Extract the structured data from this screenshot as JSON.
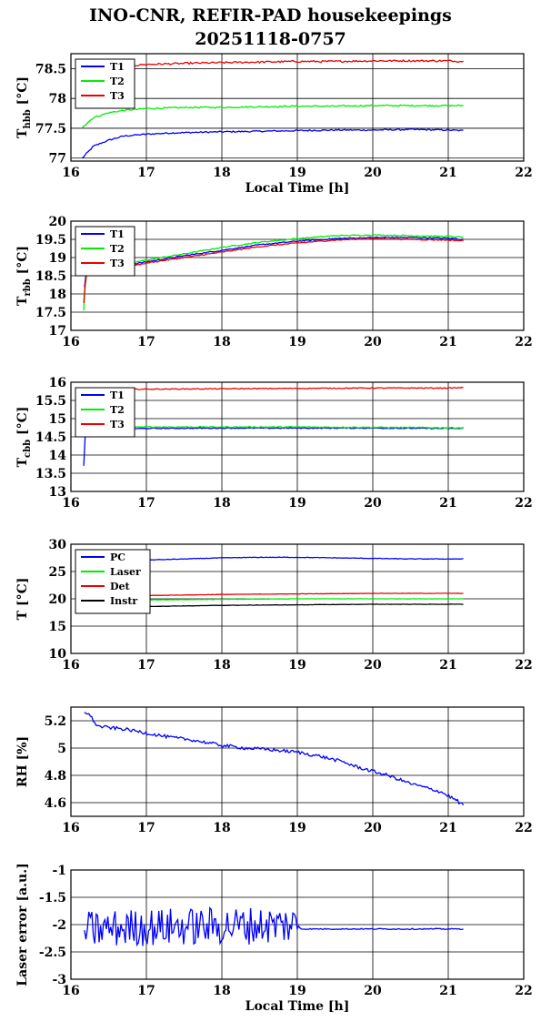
{
  "title_line1": "INO-CNR, REFIR-PAD housekeepings",
  "title_line2": "20251118-0757",
  "chart_data": [
    {
      "type": "line",
      "ylabel_main": "T",
      "ylabel_sub": "hbb",
      "ylabel_unit": "[°C]",
      "xlabel": "Local Time [h]",
      "xlim": [
        16,
        22
      ],
      "ylim": [
        76.95,
        78.75
      ],
      "xticks": [
        16,
        17,
        18,
        19,
        20,
        21,
        22
      ],
      "yticks": [
        77,
        77.5,
        78,
        78.5
      ],
      "grid": true,
      "legend_position": "top-left",
      "series": [
        {
          "name": "T1",
          "color": "#0000ff",
          "x": [
            16.15,
            16.3,
            16.5,
            16.7,
            17.0,
            17.3,
            17.6,
            18.0,
            18.5,
            19.0,
            19.5,
            20.0,
            20.5,
            21.0,
            21.2
          ],
          "y": [
            77.0,
            77.2,
            77.3,
            77.37,
            77.4,
            77.42,
            77.43,
            77.44,
            77.45,
            77.46,
            77.47,
            77.47,
            77.48,
            77.47,
            77.46
          ],
          "noise": 0.012
        },
        {
          "name": "T2",
          "color": "#00ee00",
          "x": [
            16.15,
            16.3,
            16.5,
            16.7,
            17.0,
            17.3,
            17.6,
            18.0,
            18.5,
            19.0,
            19.5,
            20.0,
            20.5,
            21.0,
            21.2
          ],
          "y": [
            77.52,
            77.68,
            77.76,
            77.8,
            77.83,
            77.84,
            77.85,
            77.85,
            77.86,
            77.87,
            77.87,
            77.88,
            77.88,
            77.88,
            77.88
          ],
          "noise": 0.012
        },
        {
          "name": "T3",
          "color": "#ee0000",
          "x": [
            16.15,
            16.3,
            16.5,
            16.8,
            17.0,
            17.3,
            17.6,
            18.0,
            18.5,
            19.0,
            19.5,
            20.0,
            20.5,
            21.0,
            21.2
          ],
          "y": [
            78.45,
            78.5,
            78.53,
            78.55,
            78.57,
            78.58,
            78.59,
            78.6,
            78.61,
            78.62,
            78.62,
            78.63,
            78.63,
            78.63,
            78.62
          ],
          "noise": 0.015
        }
      ]
    },
    {
      "type": "line",
      "ylabel_main": "T",
      "ylabel_sub": "rbb",
      "ylabel_unit": "[°C]",
      "xlabel": "",
      "xlim": [
        16,
        22
      ],
      "ylim": [
        17,
        20
      ],
      "xticks": [
        16,
        17,
        18,
        19,
        20,
        21,
        22
      ],
      "yticks": [
        17,
        17.5,
        18,
        18.5,
        19,
        19.5,
        20
      ],
      "grid": true,
      "legend_position": "top-left",
      "series": [
        {
          "name": "T1",
          "color": "#0000ff",
          "x": [
            16.18,
            16.2,
            16.4,
            16.7,
            17.0,
            17.5,
            18.0,
            18.5,
            19.0,
            19.5,
            20.0,
            20.5,
            21.0,
            21.2
          ],
          "y": [
            18.2,
            18.55,
            18.65,
            18.78,
            18.88,
            19.05,
            19.2,
            19.35,
            19.45,
            19.52,
            19.55,
            19.55,
            19.53,
            19.5
          ],
          "noise": 0.015
        },
        {
          "name": "T2",
          "color": "#00ee00",
          "x": [
            16.17,
            16.19,
            16.2,
            16.4,
            16.7,
            17.0,
            17.5,
            18.0,
            18.5,
            19.0,
            19.5,
            20.0,
            20.5,
            21.0,
            21.2
          ],
          "y": [
            17.55,
            18.2,
            18.55,
            18.7,
            18.82,
            18.93,
            19.1,
            19.28,
            19.42,
            19.52,
            19.6,
            19.62,
            19.6,
            19.58,
            19.56
          ],
          "noise": 0.015
        },
        {
          "name": "T3",
          "color": "#ee0000",
          "x": [
            16.17,
            16.19,
            16.2,
            16.4,
            16.7,
            17.0,
            17.5,
            18.0,
            18.5,
            19.0,
            19.5,
            20.0,
            20.5,
            21.0,
            21.2
          ],
          "y": [
            17.75,
            18.3,
            18.55,
            18.62,
            18.72,
            18.85,
            19.0,
            19.15,
            19.3,
            19.4,
            19.48,
            19.52,
            19.5,
            19.48,
            19.46
          ],
          "noise": 0.015
        }
      ]
    },
    {
      "type": "line",
      "ylabel_main": "T",
      "ylabel_sub": "cbb",
      "ylabel_unit": "[°C]",
      "xlabel": "",
      "xlim": [
        16,
        22
      ],
      "ylim": [
        13,
        16
      ],
      "xticks": [
        16,
        17,
        18,
        19,
        20,
        21,
        22
      ],
      "yticks": [
        13,
        13.5,
        14,
        14.5,
        15,
        15.5,
        16
      ],
      "grid": true,
      "legend_position": "top-left",
      "series": [
        {
          "name": "T1",
          "color": "#0000ff",
          "x": [
            16.17,
            16.18,
            16.2,
            16.5,
            17.0,
            18.0,
            19.0,
            20.0,
            21.0,
            21.2
          ],
          "y": [
            13.7,
            14.4,
            14.7,
            14.72,
            14.73,
            14.74,
            14.74,
            14.74,
            14.73,
            14.73
          ],
          "noise": 0.012
        },
        {
          "name": "T2",
          "color": "#00ee00",
          "x": [
            16.2,
            16.5,
            17.0,
            18.0,
            19.0,
            20.0,
            21.0,
            21.2
          ],
          "y": [
            14.78,
            14.78,
            14.77,
            14.77,
            14.77,
            14.76,
            14.75,
            14.75
          ],
          "noise": 0.015
        },
        {
          "name": "T3",
          "color": "#ee0000",
          "x": [
            16.2,
            16.5,
            17.0,
            18.0,
            19.0,
            20.0,
            21.0,
            21.2
          ],
          "y": [
            15.8,
            15.8,
            15.81,
            15.82,
            15.83,
            15.84,
            15.84,
            15.85
          ],
          "noise": 0.012
        }
      ]
    },
    {
      "type": "line",
      "ylabel_main": "T [°C]",
      "ylabel_sub": "",
      "ylabel_unit": "",
      "xlabel": "",
      "xlim": [
        16,
        22
      ],
      "ylim": [
        10,
        30
      ],
      "xticks": [
        16,
        17,
        18,
        19,
        20,
        21,
        22
      ],
      "yticks": [
        10,
        15,
        20,
        25,
        30
      ],
      "grid": true,
      "legend_position": "top-left",
      "series": [
        {
          "name": "PC",
          "color": "#0000ff",
          "x": [
            16.2,
            16.5,
            17.0,
            17.5,
            18.0,
            18.5,
            19.0,
            19.5,
            20.0,
            20.5,
            21.0,
            21.2
          ],
          "y": [
            26.9,
            27.0,
            27.1,
            27.3,
            27.5,
            27.6,
            27.6,
            27.5,
            27.4,
            27.3,
            27.3,
            27.3
          ],
          "noise": 0.05
        },
        {
          "name": "Laser",
          "color": "#00ee00",
          "x": [
            16.2,
            17.0,
            18.0,
            19.0,
            20.0,
            21.0,
            21.2
          ],
          "y": [
            19.7,
            19.8,
            19.9,
            20.0,
            20.0,
            20.0,
            20.0
          ],
          "noise": 0.03
        },
        {
          "name": "Det",
          "color": "#ee0000",
          "x": [
            16.2,
            17.0,
            18.0,
            19.0,
            20.0,
            21.0,
            21.2
          ],
          "y": [
            20.3,
            20.6,
            20.8,
            20.9,
            21.0,
            21.0,
            21.0
          ],
          "noise": 0.03
        },
        {
          "name": "Instr",
          "color": "#000000",
          "x": [
            16.2,
            17.0,
            18.0,
            19.0,
            20.0,
            21.0,
            21.2
          ],
          "y": [
            18.4,
            18.6,
            18.8,
            18.9,
            19.0,
            19.0,
            19.0
          ],
          "noise": 0.03
        }
      ]
    },
    {
      "type": "line",
      "ylabel_main": "RH [%]",
      "ylabel_sub": "",
      "ylabel_unit": "",
      "xlabel": "",
      "xlim": [
        16,
        22
      ],
      "ylim": [
        4.5,
        5.3
      ],
      "xticks": [
        16,
        17,
        18,
        19,
        20,
        21,
        22
      ],
      "yticks": [
        4.6,
        4.8,
        5,
        5.2
      ],
      "grid": true,
      "legend_position": "none",
      "series": [
        {
          "name": "",
          "color": "#0000ff",
          "x": [
            16.18,
            16.25,
            16.35,
            16.5,
            16.7,
            17.0,
            17.3,
            17.6,
            18.0,
            18.3,
            18.6,
            19.0,
            19.3,
            19.6,
            19.8,
            20.0,
            20.2,
            20.5,
            20.7,
            20.9,
            21.0,
            21.1,
            21.2
          ],
          "y": [
            5.27,
            5.24,
            5.16,
            5.15,
            5.14,
            5.11,
            5.08,
            5.06,
            5.02,
            5.0,
            4.99,
            4.97,
            4.94,
            4.9,
            4.86,
            4.83,
            4.8,
            4.74,
            4.71,
            4.68,
            4.65,
            4.62,
            4.58
          ],
          "noise": 0.012
        }
      ]
    },
    {
      "type": "line",
      "ylabel_main": "Laser error [a.u.]",
      "ylabel_sub": "",
      "ylabel_unit": "",
      "xlabel": "Local Time [h]",
      "xlim": [
        16,
        22
      ],
      "ylim": [
        -3,
        -1
      ],
      "xticks": [
        16,
        17,
        18,
        19,
        20,
        21,
        22
      ],
      "yticks": [
        -3,
        -2.5,
        -2,
        -1.5,
        -1
      ],
      "grid": true,
      "legend_position": "none",
      "series": [
        {
          "name": "",
          "color": "#0000ff",
          "x": [
            16.18,
            16.9,
            17.0,
            19.0,
            19.05,
            20.0,
            21.0,
            21.2
          ],
          "y": [
            -2.1,
            -2.05,
            -2.05,
            -2.0,
            -2.08,
            -2.08,
            -2.08,
            -2.08
          ],
          "noise": 0.01,
          "jitter_until": 19.0,
          "jitter_amp": 0.35
        }
      ]
    }
  ]
}
